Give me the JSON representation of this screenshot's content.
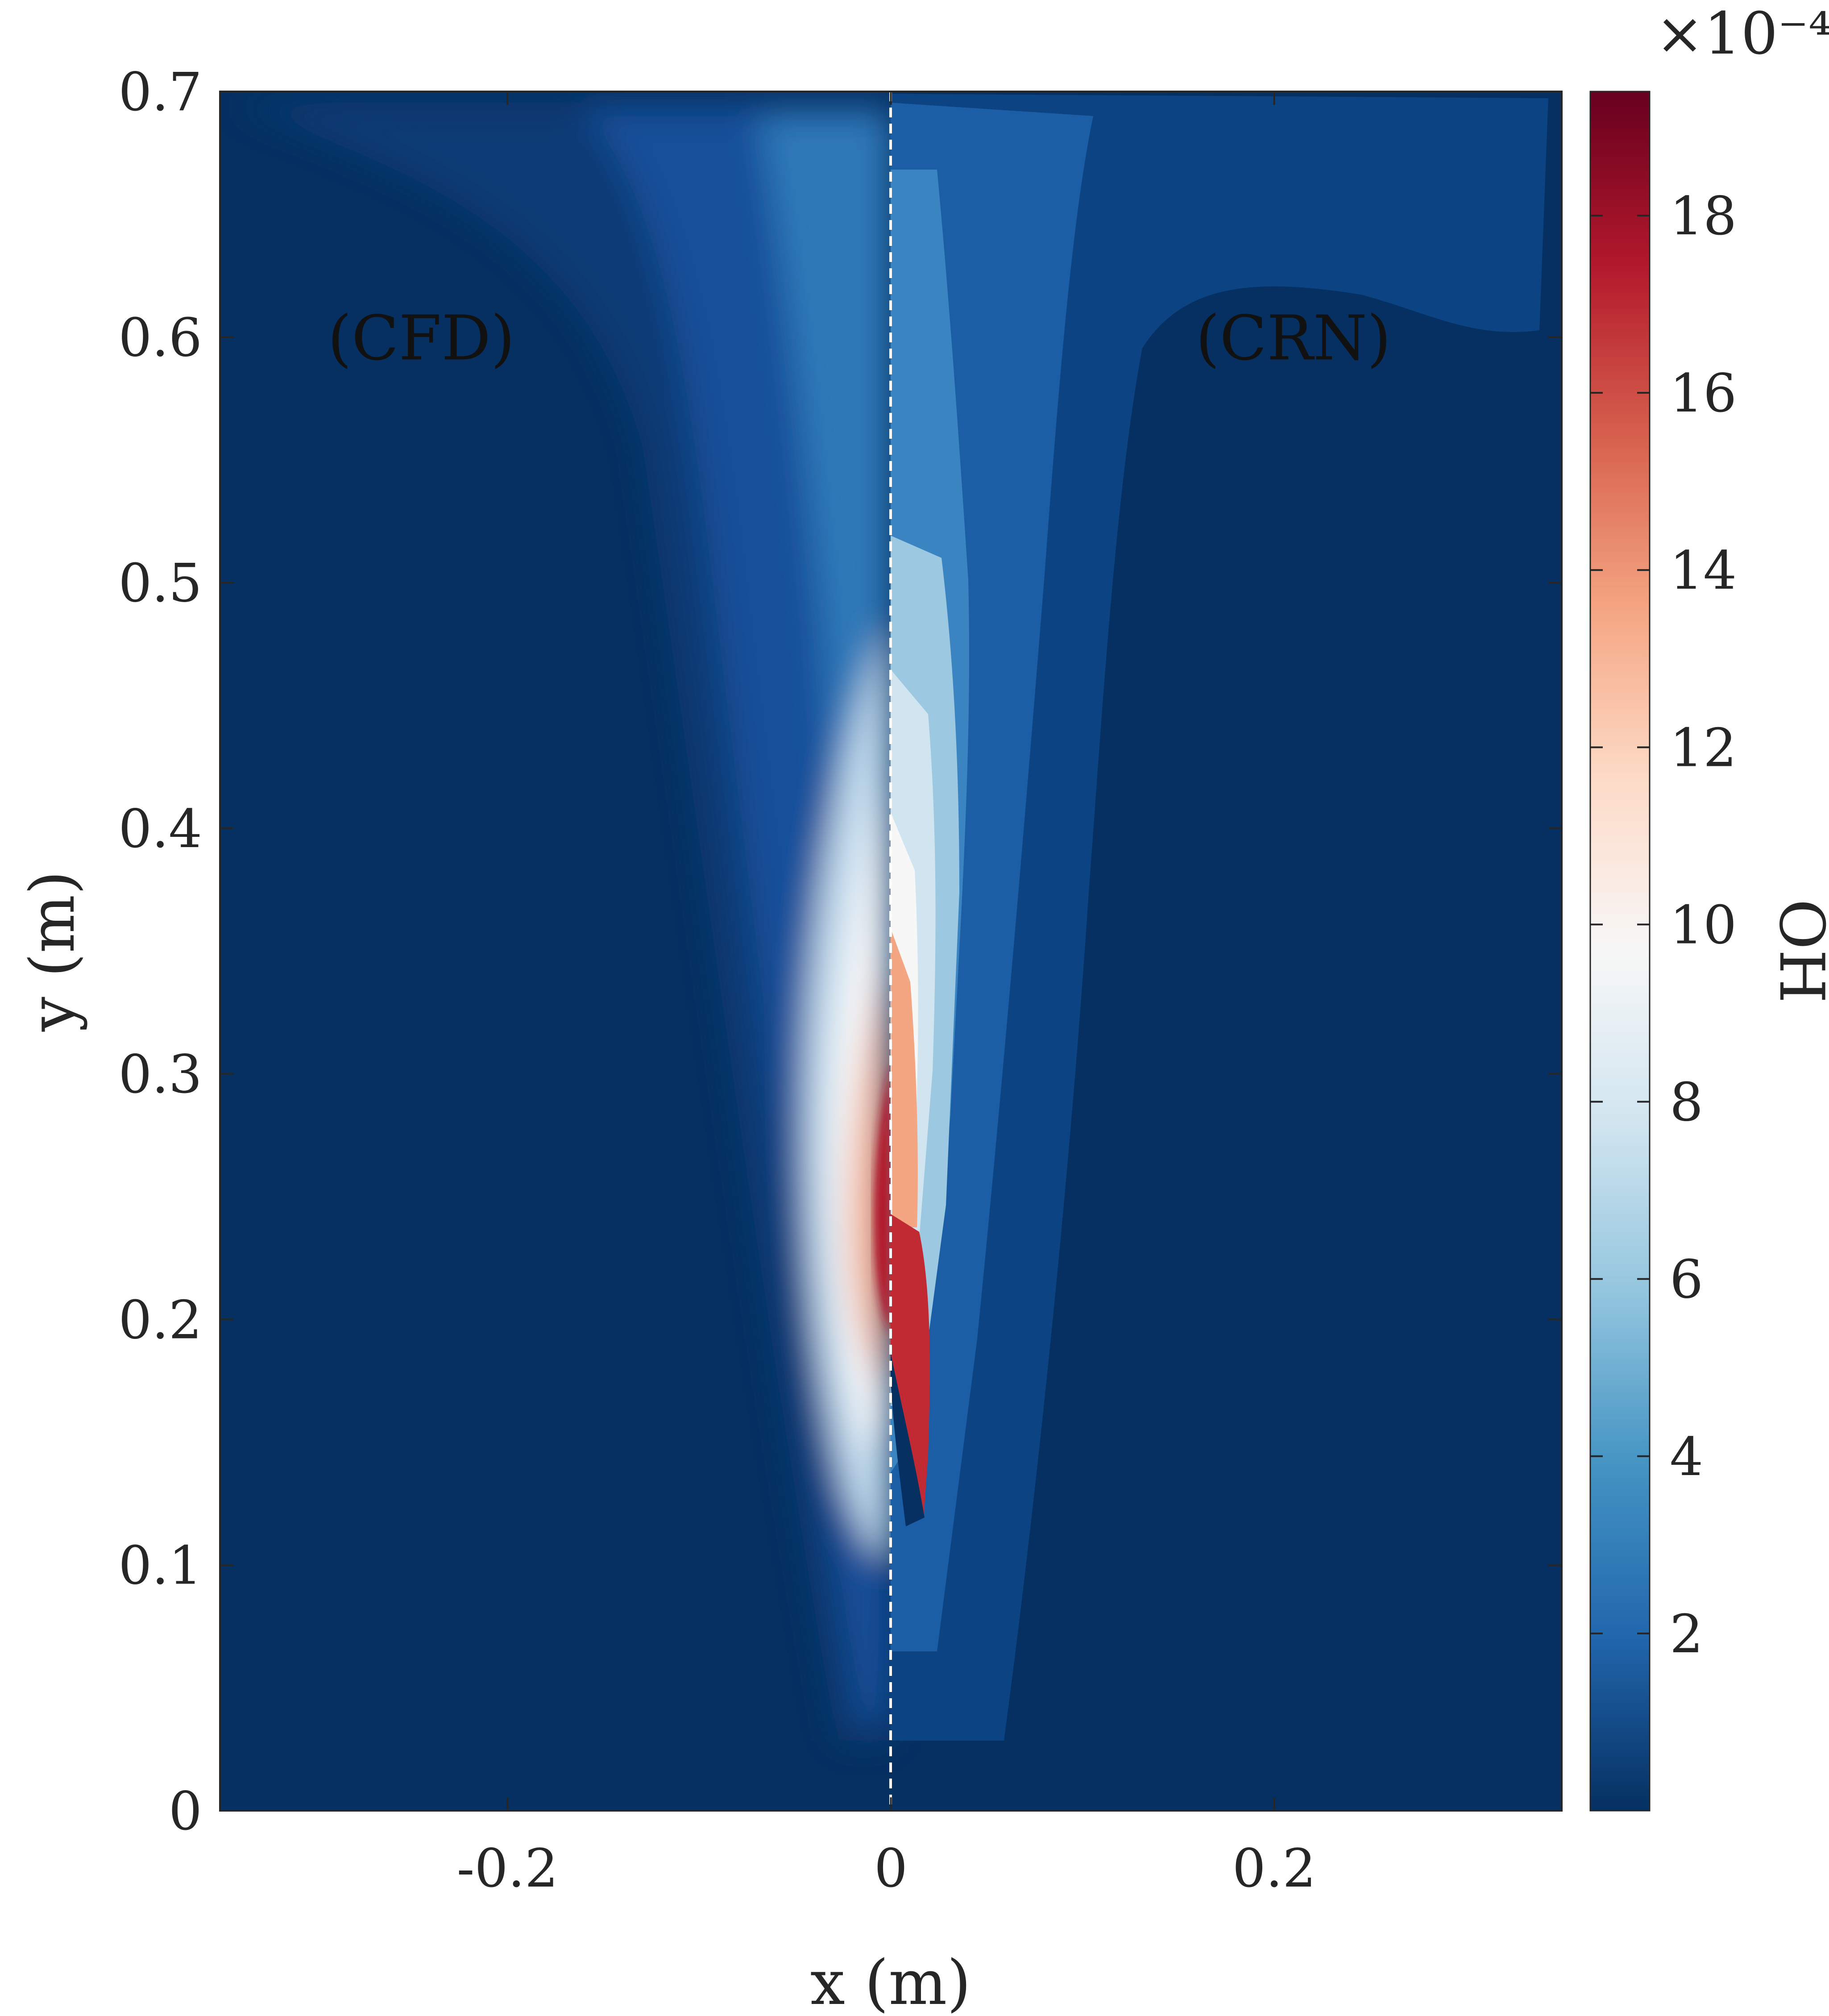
{
  "chart_data": {
    "type": "heatmap",
    "title": "",
    "xlabel": "x (m)",
    "ylabel": "y (m)",
    "xlim": [
      -0.35,
      0.35
    ],
    "ylim": [
      0,
      0.7
    ],
    "x_ticks": [
      -0.2,
      0,
      0.2
    ],
    "x_tick_labels": [
      "-0.2",
      "0",
      "0.2"
    ],
    "y_ticks": [
      0,
      0.1,
      0.2,
      0.3,
      0.4,
      0.5,
      0.6,
      0.7
    ],
    "y_tick_labels": [
      "0",
      "0.1",
      "0.2",
      "0.3",
      "0.4",
      "0.5",
      "0.6",
      "0.7"
    ],
    "annotations": [
      {
        "text": "(CFD)",
        "x": -0.245,
        "y": 0.6
      },
      {
        "text": "(CRN)",
        "x": 0.21,
        "y": 0.6
      }
    ],
    "divider": {
      "x": 0,
      "style": "dashed",
      "color": "#ffffff"
    },
    "colorbar": {
      "label": "OH",
      "exponent_label": "×10⁻⁴",
      "range": [
        0,
        19.4
      ],
      "ticks": [
        2,
        4,
        6,
        8,
        10,
        12,
        14,
        16,
        18
      ],
      "tick_labels": [
        "2",
        "4",
        "6",
        "8",
        "10",
        "12",
        "14",
        "16",
        "18"
      ],
      "colormap": [
        "#053061",
        "#2166ac",
        "#4393c3",
        "#92c5de",
        "#d1e5f0",
        "#f7f7f7",
        "#fddbc7",
        "#f4a582",
        "#d6604d",
        "#b2182b",
        "#67001f"
      ]
    },
    "fields": {
      "CFD": {
        "description": "left half: smooth OH field, peak ~19e-4 near x=-0.005, y=0.22",
        "peak_value": 19.0,
        "background_value": 0.4
      },
      "CRN": {
        "description": "right half: piecewise reactor-network OH field, peak ~17e-4 near x=0.01, y=0.19",
        "peak_value": 17.0,
        "background_value": 0.4
      }
    }
  }
}
